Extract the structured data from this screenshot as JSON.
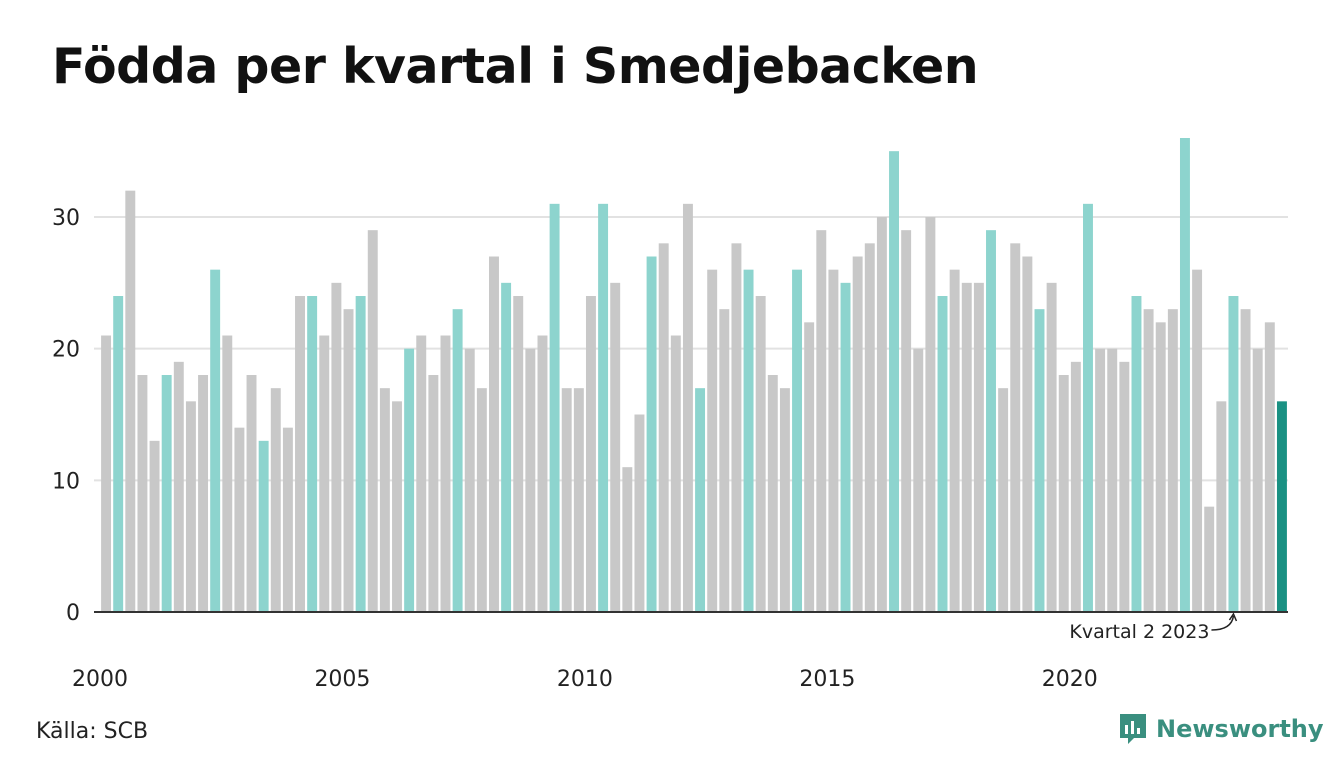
{
  "title": "Födda per kvartal i Smedjebacken",
  "source": "Källa: SCB",
  "brand": {
    "name": "Newsworthy",
    "color": "#3a8f7f",
    "icon": "newsworthy-logo-icon"
  },
  "colors": {
    "highlight_quarter": "#8dd4ce",
    "other": "#c8c8c8",
    "latest": "#1a9183"
  },
  "chart_data": {
    "type": "bar",
    "title": "Födda per kvartal i Smedjebacken",
    "xlabel": "",
    "ylabel": "",
    "ylim": [
      0,
      36
    ],
    "yticks": [
      0,
      10,
      20,
      30
    ],
    "grid": true,
    "x_tick_labels": [
      "2000",
      "2005",
      "2010",
      "2015",
      "2020"
    ],
    "start": "2000 Q1",
    "values": [
      21,
      24,
      32,
      18,
      13,
      18,
      19,
      16,
      18,
      26,
      21,
      14,
      18,
      13,
      17,
      14,
      24,
      24,
      21,
      25,
      23,
      24,
      29,
      17,
      16,
      20,
      21,
      18,
      21,
      23,
      20,
      17,
      27,
      25,
      24,
      20,
      21,
      31,
      17,
      17,
      24,
      31,
      25,
      11,
      15,
      27,
      28,
      21,
      31,
      17,
      26,
      23,
      28,
      26,
      24,
      18,
      17,
      26,
      22,
      29,
      26,
      25,
      27,
      28,
      30,
      35,
      29,
      20,
      30,
      24,
      26,
      25,
      25,
      29,
      17,
      28,
      27,
      23,
      25,
      18,
      19,
      31,
      20,
      20,
      19,
      24,
      23,
      22,
      23,
      36,
      26,
      8,
      16,
      24,
      23,
      20,
      22,
      16
    ],
    "annotation": {
      "text": "Kvartal 2 2023",
      "target": "2023 Q2"
    }
  }
}
